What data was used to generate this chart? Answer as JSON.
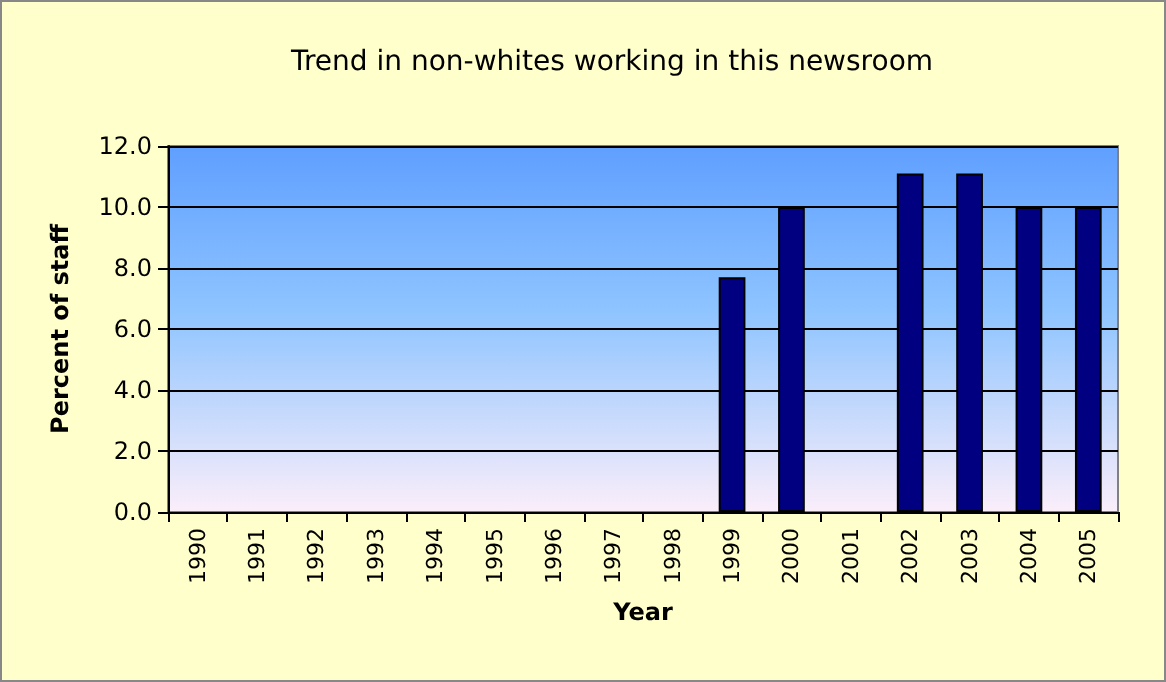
{
  "chart_data": {
    "type": "bar",
    "title": "Trend in non-whites working in this newsroom",
    "xlabel": "Year",
    "ylabel": "Percent of staff",
    "categories": [
      "1990",
      "1991",
      "1992",
      "1993",
      "1994",
      "1995",
      "1996",
      "1997",
      "1998",
      "1999",
      "2000",
      "2001",
      "2002",
      "2003",
      "2004",
      "2005"
    ],
    "values": [
      null,
      null,
      null,
      null,
      null,
      null,
      null,
      null,
      null,
      7.7,
      10.0,
      null,
      11.1,
      11.1,
      10.0,
      10.0
    ],
    "color": "#000080",
    "ylim": [
      0,
      12
    ],
    "yticks": [
      {
        "value": 0,
        "label": "0.0"
      },
      {
        "value": 2,
        "label": "2.0"
      },
      {
        "value": 4,
        "label": "4.0"
      },
      {
        "value": 6,
        "label": "6.0"
      },
      {
        "value": 8,
        "label": "8.0"
      },
      {
        "value": 10,
        "label": "10.0"
      },
      {
        "value": 12,
        "label": "12.0"
      }
    ],
    "grid": "y"
  }
}
